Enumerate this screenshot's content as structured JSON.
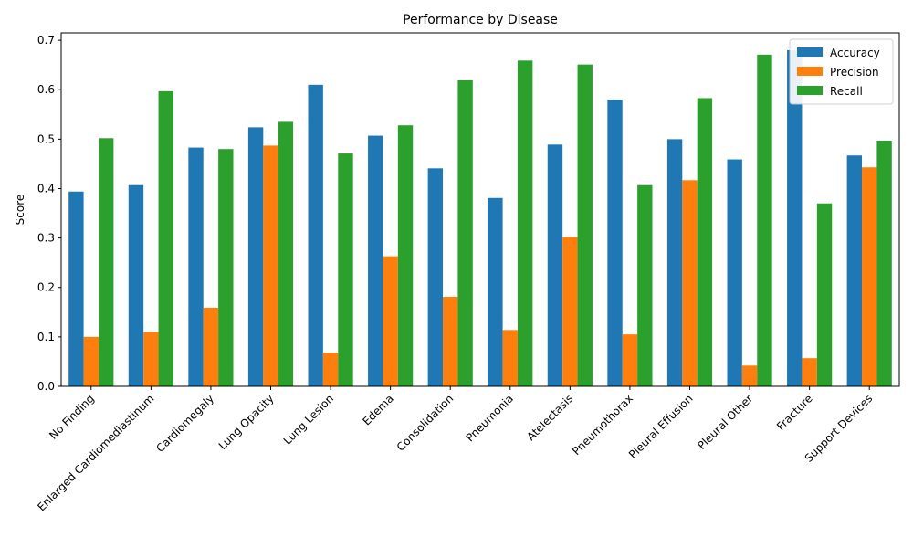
{
  "chart_data": {
    "type": "bar",
    "title": "Performance by Disease",
    "xlabel": "",
    "ylabel": "Score",
    "ylim": [
      0,
      0.715
    ],
    "yticks": [
      0.0,
      0.1,
      0.2,
      0.3,
      0.4,
      0.5,
      0.6,
      0.7
    ],
    "ytick_labels": [
      "0.0",
      "0.1",
      "0.2",
      "0.3",
      "0.4",
      "0.5",
      "0.6",
      "0.7"
    ],
    "grid": false,
    "legend_position": "top-right",
    "categories": [
      "No Finding",
      "Enlarged Cardiomediastinum",
      "Cardiomegaly",
      "Lung Opacity",
      "Lung Lesion",
      "Edema",
      "Consolidation",
      "Pneumonia",
      "Atelectasis",
      "Pneumothorax",
      "Pleural Effusion",
      "Pleural Other",
      "Fracture",
      "Support Devices"
    ],
    "series": [
      {
        "name": "Accuracy",
        "color": "#1f77b4",
        "values": [
          0.394,
          0.407,
          0.483,
          0.524,
          0.61,
          0.507,
          0.441,
          0.381,
          0.489,
          0.58,
          0.5,
          0.459,
          0.68,
          0.467
        ]
      },
      {
        "name": "Precision",
        "color": "#ff7f0e",
        "values": [
          0.1,
          0.11,
          0.159,
          0.487,
          0.068,
          0.263,
          0.181,
          0.114,
          0.302,
          0.105,
          0.417,
          0.042,
          0.057,
          0.443
        ]
      },
      {
        "name": "Recall",
        "color": "#2ca02c",
        "values": [
          0.502,
          0.597,
          0.48,
          0.535,
          0.471,
          0.528,
          0.619,
          0.659,
          0.651,
          0.407,
          0.583,
          0.671,
          0.37,
          0.497
        ]
      }
    ]
  }
}
